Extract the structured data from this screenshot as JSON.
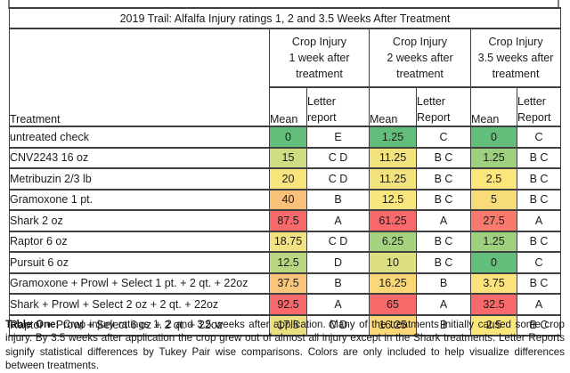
{
  "table": {
    "title": "2019 Trail: Alfalfa Injury ratings 1, 2 and 3.5 Weeks After Treatment",
    "groups": [
      "Crop Injury\n1 week after\ntreatment",
      "Crop Injury\n2 weeks after\ntreatment",
      "Crop Injury\n3.5 weeks after\ntreatment"
    ],
    "sub_headers": {
      "treatment": "Treatment",
      "cols": [
        {
          "mean": "Mean",
          "letter": "Letter\nreport"
        },
        {
          "mean": "Mean",
          "letter": "Letter\nReport"
        },
        {
          "mean": "Mean",
          "letter": "Letter\nReport"
        }
      ]
    },
    "rows": [
      {
        "treatment": "untreated check",
        "cells": [
          {
            "mean": "0",
            "color": "#63be7b",
            "letter": "E"
          },
          {
            "mean": "1.25",
            "color": "#63be7b",
            "letter": "C"
          },
          {
            "mean": "0",
            "color": "#63be7b",
            "letter": "C"
          }
        ]
      },
      {
        "treatment": "CNV2243 16 oz",
        "cells": [
          {
            "mean": "15",
            "color": "#cedd82",
            "letter": "C D"
          },
          {
            "mean": "11.25",
            "color": "#f3e37e",
            "letter": "B C"
          },
          {
            "mean": "1.25",
            "color": "#9ed07e",
            "letter": "B C"
          }
        ]
      },
      {
        "treatment": "Metribuzin 2/3 lb",
        "cells": [
          {
            "mean": "20",
            "color": "#f7e47d",
            "letter": "C D"
          },
          {
            "mean": "11.25",
            "color": "#f3e37e",
            "letter": "B C"
          },
          {
            "mean": "2.5",
            "color": "#fbe57d",
            "letter": "B C"
          }
        ]
      },
      {
        "treatment": "Gramoxone 1 pt.",
        "cells": [
          {
            "mean": "40",
            "color": "#f9c07a",
            "letter": "B"
          },
          {
            "mean": "12.5",
            "color": "#f8e57e",
            "letter": "B C"
          },
          {
            "mean": "5",
            "color": "#f9dc7a",
            "letter": "B C"
          }
        ]
      },
      {
        "treatment": "Shark 2 oz",
        "cells": [
          {
            "mean": "87.5",
            "color": "#f8696b",
            "letter": "A"
          },
          {
            "mean": "61.25",
            "color": "#f8696b",
            "letter": "A"
          },
          {
            "mean": "27.5",
            "color": "#f87a6d",
            "letter": "A"
          }
        ]
      },
      {
        "treatment": "Raptor 6 oz",
        "cells": [
          {
            "mean": "18.75",
            "color": "#f0e282",
            "letter": "C D"
          },
          {
            "mean": "6.25",
            "color": "#a4d27f",
            "letter": "B C"
          },
          {
            "mean": "1.25",
            "color": "#9ed07e",
            "letter": "B C"
          }
        ]
      },
      {
        "treatment": "Pursuit 6 oz",
        "cells": [
          {
            "mean": "12.5",
            "color": "#b9d781",
            "letter": "D"
          },
          {
            "mean": "10",
            "color": "#dce081",
            "letter": "B C"
          },
          {
            "mean": "0",
            "color": "#63be7b",
            "letter": "C"
          }
        ]
      },
      {
        "treatment": "Gramoxone + Prowl + Select 1 pt. + 2 qt. + 22oz",
        "cells": [
          {
            "mean": "37.5",
            "color": "#f9c67b",
            "letter": "B"
          },
          {
            "mean": "16.25",
            "color": "#fbd778",
            "letter": "B"
          },
          {
            "mean": "3.75",
            "color": "#fce27c",
            "letter": "B C"
          }
        ]
      },
      {
        "treatment": "Shark + Prowl + Select 2 oz + 2 qt. + 22oz",
        "cells": [
          {
            "mean": "92.5",
            "color": "#f8696b",
            "letter": "A"
          },
          {
            "mean": "65",
            "color": "#f8696b",
            "letter": "A"
          },
          {
            "mean": "32.5",
            "color": "#f8696b",
            "letter": "A"
          }
        ]
      },
      {
        "treatment": "Raptor + Prowl + Select 6 oz + 2 qt. + 22oz",
        "cells": [
          {
            "mean": "17.5",
            "color": "#eae082",
            "letter": "C D"
          },
          {
            "mean": "16.25",
            "color": "#fbd778",
            "letter": "B"
          },
          {
            "mean": "2.5",
            "color": "#fbe57d",
            "letter": "B C"
          }
        ]
      }
    ]
  },
  "caption": {
    "label": "Table One:",
    "text": " Crop injury ratings 1, 2 and 3.5 weeks after application. Many of the treatments initially caused some crop injury. By 3.5 weeks after application the crop grew out of almost all injury except in the Shark treatments. Letter Reports signify statistical differences by Tukey Pair wise comparisons. Colors are only included to help visualize differences between treatments."
  },
  "colors": {
    "scale_green": "#63be7b",
    "scale_yellow": "#ffeb84",
    "scale_red": "#f8696b",
    "border": "#3f3f3f"
  }
}
